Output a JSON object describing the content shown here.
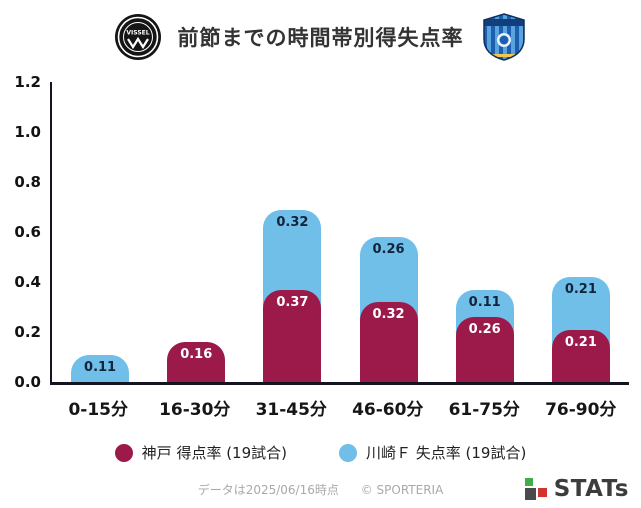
{
  "header": {
    "title": "前節までの時間帯別得失点率"
  },
  "logos": {
    "vissel_text": "VISSEL"
  },
  "chart_data": {
    "type": "bar",
    "stacked": true,
    "title": "前節までの時間帯別得失点率",
    "categories": [
      "0-15分",
      "16-30分",
      "31-45分",
      "46-60分",
      "61-75分",
      "76-90分"
    ],
    "series": [
      {
        "name": "神戸 得点率 (19試合)",
        "color": "#9b1a4a",
        "label_color": "#ffffff",
        "values": [
          0,
          0.16,
          0.37,
          0.32,
          0.26,
          0.21
        ]
      },
      {
        "name": "川崎Ｆ 失点率 (19試合)",
        "color": "#6fbfe9",
        "label_color": "#14233c",
        "values": [
          0.11,
          0,
          0.32,
          0.26,
          0.11,
          0.21
        ]
      }
    ],
    "ylim": [
      0,
      1.2
    ],
    "yticks": [
      0.0,
      0.2,
      0.4,
      0.6,
      0.8,
      1.0,
      1.2
    ],
    "grid": false,
    "legend_position": "bottom"
  },
  "footer": {
    "note": "データは2025/06/16時点",
    "copyright": "© SPORTERIA"
  },
  "brand": {
    "name": "STATs"
  }
}
